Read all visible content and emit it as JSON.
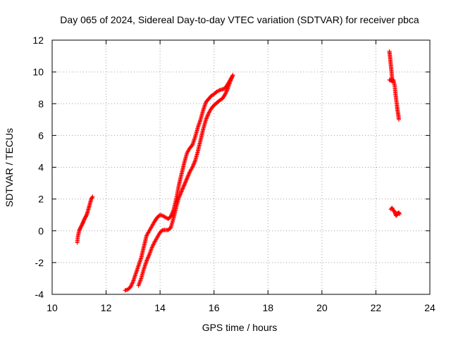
{
  "chart_data": {
    "type": "scatter",
    "title": "Day 065 of 2024, Sidereal Day-to-day VTEC variation (SDTVAR) for receiver pbca",
    "xlabel": "GPS time / hours",
    "ylabel": "SDTVAR / TECUs",
    "xlim": [
      10,
      24
    ],
    "ylim": [
      -4,
      12
    ],
    "xticks": [
      10,
      12,
      14,
      16,
      18,
      20,
      22,
      24
    ],
    "yticks": [
      -4,
      -2,
      0,
      2,
      4,
      6,
      8,
      10,
      12
    ],
    "x_tick_labels": [
      "10",
      "12",
      "14",
      "16",
      "18",
      "20",
      "22",
      "24"
    ],
    "y_tick_labels": [
      "-4",
      "-2",
      "0",
      "2",
      "4",
      "6",
      "8",
      "10",
      "12"
    ],
    "grid": true,
    "marker": "plus",
    "color": "#ff0000",
    "series": [
      {
        "name": "segment-1",
        "points": [
          [
            10.93,
            -0.75
          ],
          [
            10.95,
            -0.4
          ],
          [
            11.0,
            0.0
          ],
          [
            11.05,
            0.2
          ],
          [
            11.1,
            0.35
          ],
          [
            11.15,
            0.55
          ],
          [
            11.2,
            0.75
          ],
          [
            11.25,
            0.9
          ],
          [
            11.3,
            1.1
          ],
          [
            11.35,
            1.4
          ],
          [
            11.4,
            1.7
          ],
          [
            11.45,
            2.0
          ],
          [
            11.5,
            2.15
          ]
        ]
      },
      {
        "name": "segment-2-trace-a",
        "points": [
          [
            12.7,
            -3.75
          ],
          [
            12.8,
            -3.7
          ],
          [
            12.9,
            -3.55
          ],
          [
            13.0,
            -3.2
          ],
          [
            13.1,
            -2.7
          ],
          [
            13.2,
            -2.2
          ],
          [
            13.3,
            -1.7
          ],
          [
            13.4,
            -1.0
          ],
          [
            13.5,
            -0.3
          ],
          [
            13.6,
            0.0
          ],
          [
            13.7,
            0.3
          ],
          [
            13.8,
            0.6
          ],
          [
            13.9,
            0.85
          ],
          [
            14.0,
            1.0
          ],
          [
            14.1,
            0.95
          ],
          [
            14.2,
            0.85
          ],
          [
            14.3,
            0.75
          ],
          [
            14.4,
            0.9
          ],
          [
            14.5,
            1.3
          ],
          [
            14.6,
            2.0
          ],
          [
            14.7,
            2.9
          ],
          [
            14.8,
            3.6
          ],
          [
            14.9,
            4.3
          ],
          [
            15.0,
            4.9
          ],
          [
            15.1,
            5.2
          ],
          [
            15.2,
            5.4
          ],
          [
            15.3,
            5.9
          ],
          [
            15.4,
            6.5
          ],
          [
            15.5,
            7.0
          ],
          [
            15.6,
            7.6
          ],
          [
            15.7,
            8.1
          ],
          [
            15.8,
            8.3
          ],
          [
            15.9,
            8.5
          ],
          [
            16.0,
            8.6
          ],
          [
            16.1,
            8.75
          ],
          [
            16.2,
            8.85
          ],
          [
            16.3,
            8.9
          ],
          [
            16.4,
            8.95
          ],
          [
            16.5,
            9.2
          ],
          [
            16.6,
            9.5
          ],
          [
            16.7,
            9.8
          ]
        ]
      },
      {
        "name": "segment-2-trace-b",
        "points": [
          [
            13.2,
            -3.45
          ],
          [
            13.3,
            -3.0
          ],
          [
            13.4,
            -2.4
          ],
          [
            13.5,
            -1.9
          ],
          [
            13.6,
            -1.5
          ],
          [
            13.7,
            -1.05
          ],
          [
            13.8,
            -0.7
          ],
          [
            13.9,
            -0.4
          ],
          [
            14.0,
            -0.1
          ],
          [
            14.1,
            0.05
          ],
          [
            14.2,
            0.05
          ],
          [
            14.3,
            0.05
          ],
          [
            14.4,
            0.2
          ],
          [
            14.5,
            0.8
          ],
          [
            14.6,
            1.5
          ],
          [
            14.7,
            2.1
          ],
          [
            14.8,
            2.5
          ],
          [
            14.9,
            2.9
          ],
          [
            15.0,
            3.3
          ],
          [
            15.1,
            3.7
          ],
          [
            15.2,
            4.0
          ],
          [
            15.3,
            4.4
          ],
          [
            15.4,
            5.0
          ],
          [
            15.5,
            5.7
          ],
          [
            15.6,
            6.4
          ],
          [
            15.7,
            7.0
          ],
          [
            15.8,
            7.4
          ],
          [
            15.9,
            7.7
          ],
          [
            16.0,
            7.9
          ],
          [
            16.1,
            8.05
          ],
          [
            16.2,
            8.2
          ],
          [
            16.3,
            8.3
          ],
          [
            16.4,
            8.55
          ],
          [
            16.5,
            8.9
          ],
          [
            16.6,
            9.4
          ],
          [
            16.7,
            9.8
          ]
        ]
      },
      {
        "name": "segment-3-upper",
        "points": [
          [
            22.5,
            11.3
          ],
          [
            22.52,
            11.0
          ],
          [
            22.55,
            10.5
          ],
          [
            22.58,
            10.0
          ],
          [
            22.6,
            9.6
          ],
          [
            22.62,
            9.4
          ],
          [
            22.5,
            9.5
          ],
          [
            22.65,
            9.5
          ],
          [
            22.7,
            9.1
          ],
          [
            22.72,
            8.7
          ],
          [
            22.75,
            8.3
          ],
          [
            22.78,
            7.9
          ],
          [
            22.8,
            7.6
          ],
          [
            22.83,
            7.3
          ],
          [
            22.85,
            7.0
          ]
        ]
      },
      {
        "name": "segment-3-lower",
        "points": [
          [
            22.55,
            1.35
          ],
          [
            22.6,
            1.45
          ],
          [
            22.62,
            1.3
          ],
          [
            22.65,
            1.3
          ],
          [
            22.7,
            1.2
          ],
          [
            22.72,
            1.05
          ],
          [
            22.75,
            0.95
          ],
          [
            22.78,
            1.0
          ],
          [
            22.8,
            1.1
          ],
          [
            22.85,
            1.15
          ],
          [
            22.88,
            1.05
          ]
        ]
      }
    ]
  }
}
